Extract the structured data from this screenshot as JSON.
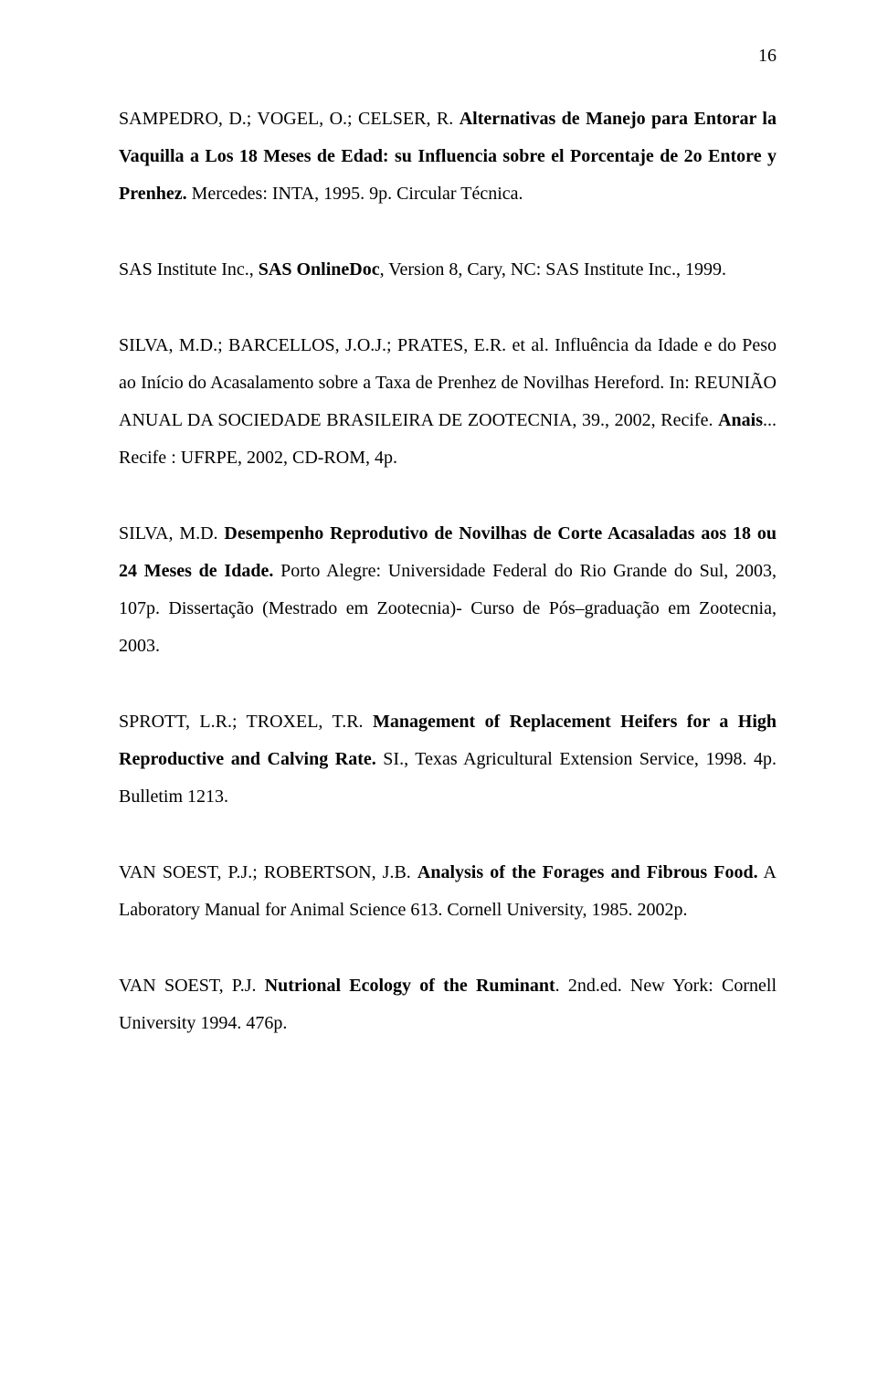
{
  "page_number": "16",
  "refs": {
    "r1": {
      "a": "SAMPEDRO, D.; VOGEL, O.; CELSER, R. ",
      "b": "Alternativas de Manejo para Entorar la Vaquilla a Los 18 Meses de Edad: su Influencia sobre el Porcentaje de 2o Entore y Prenhez.",
      "c": " Mercedes: INTA, 1995. 9p. Circular Técnica."
    },
    "r2": {
      "a": "SAS Institute Inc., ",
      "b": "SAS OnlineDoc",
      "c": ", Version 8, Cary, NC: SAS Institute Inc., 1999."
    },
    "r3": {
      "a": "SILVA, M.D.; BARCELLOS, J.O.J.; PRATES, E.R. et al. Influência da Idade e do Peso ao Início do Acasalamento sobre a Taxa de Prenhez de Novilhas Hereford. In: REUNIÃO ANUAL DA SOCIEDADE BRASILEIRA DE ZOOTECNIA, 39., 2002, Recife. ",
      "b": "Anais",
      "c": "... Recife : UFRPE, 2002, CD-ROM, 4p."
    },
    "r4": {
      "a": "SILVA, M.D. ",
      "b": "Desempenho Reprodutivo de Novilhas de Corte Acasaladas aos 18 ou 24 Meses de Idade.",
      "c": " Porto Alegre: Universidade Federal do Rio Grande do Sul, 2003, 107p. Dissertação (Mestrado em Zootecnia)- Curso de Pós–graduação em Zootecnia, 2003."
    },
    "r5": {
      "a": "SPROTT, L.R.; TROXEL, T.R. ",
      "b": "Management of Replacement Heifers for a High Reproductive and Calving Rate.",
      "c": " SI., Texas Agricultural Extension Service, 1998. 4p. Bulletim 1213."
    },
    "r6": {
      "a": "VAN SOEST, P.J.; ROBERTSON, J.B. ",
      "b": "Analysis of the Forages and Fibrous Food.",
      "c": " A Laboratory Manual for Animal Science 613. Cornell University, 1985. 2002p."
    },
    "r7": {
      "a": "VAN SOEST, P.J. ",
      "b": "Nutrional Ecology of the Ruminant",
      "c": ". 2nd.ed. New York: Cornell University 1994. 476p."
    }
  }
}
